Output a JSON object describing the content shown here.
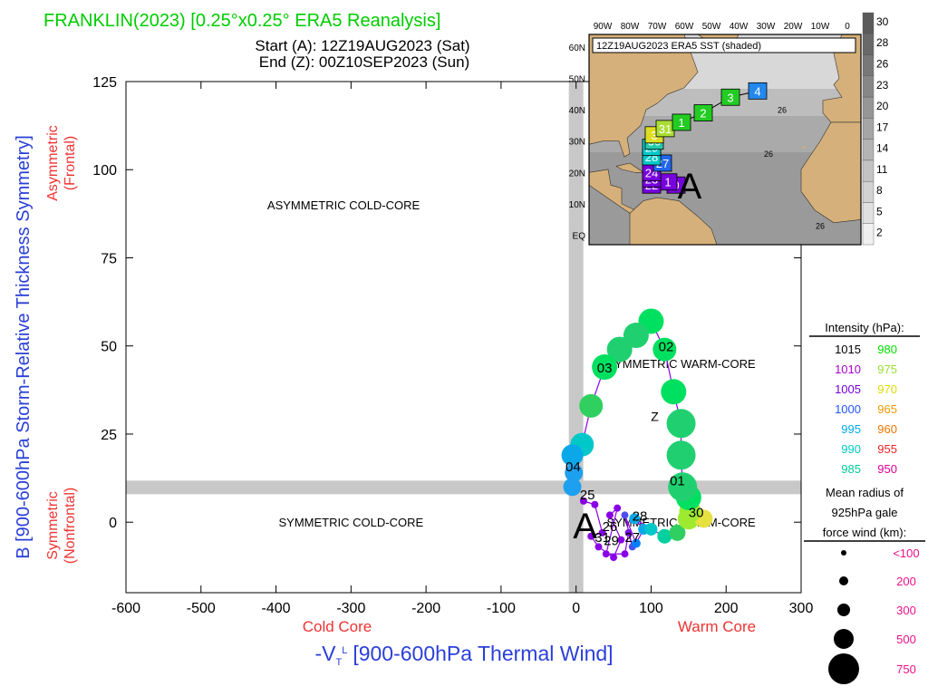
{
  "header": {
    "title": "FRANKLIN(2023) [0.25°x0.25° ERA5 Reanalysis]",
    "start": "Start (A): 12Z19AUG2023 (Sat)",
    "end": "End (Z): 00Z10SEP2023 (Sun)"
  },
  "colors": {
    "title": "#00cc00",
    "cold_label": "#ee3333",
    "warm_label": "#ee3333",
    "axis_label": "#2a3fd8",
    "asym_label": "#ee3333",
    "quadrant_bar": "#c8c8c8"
  },
  "chart_data": {
    "type": "scatter",
    "xlabel": "-V",
    "xlabel_sub": "T",
    "xlabel_sup": "L",
    "xlabel_rest": "[900-600hPa Thermal Wind]",
    "ylabel": "B [900-600hPa Storm-Relative Thickness Symmetry]",
    "xlim": [
      -600,
      300
    ],
    "ylim": [
      -20,
      125
    ],
    "x_ticks": [
      -600,
      -500,
      -400,
      -300,
      -200,
      -100,
      0,
      100,
      200,
      300
    ],
    "y_ticks": [
      0,
      25,
      50,
      75,
      100,
      125
    ],
    "threshold_x": 0,
    "threshold_y": 10,
    "side_labels": {
      "cold_core": "Cold Core",
      "warm_core": "Warm Core",
      "asym_line1": "Asymmetric",
      "asym_line2": "(Frontal)",
      "sym_line1": "Symmetric",
      "sym_line2": "(Nonfrontal)"
    },
    "quadrants": [
      {
        "text": "ASYMMETRIC COLD-CORE",
        "x": -310,
        "y": 90
      },
      {
        "text": "SYMMETRIC WARM-CORE",
        "x": 140,
        "y": 45
      },
      {
        "text": "SYMMETRIC COLD-CORE",
        "x": -300,
        "y": 0
      },
      {
        "text": "SYMMETRIC WARM-CORE",
        "x": 140,
        "y": 0
      }
    ],
    "start_marker": {
      "text": "A",
      "x": 12,
      "y": -1
    },
    "end_marker": {
      "text": "Z",
      "x": 105,
      "y": 30
    },
    "track": [
      {
        "x": 10,
        "y": 6,
        "r": 4,
        "c": "#8a00e6"
      },
      {
        "x": 25,
        "y": 5,
        "r": 4,
        "c": "#8a00e6"
      },
      {
        "x": 35,
        "y": -3,
        "r": 4,
        "c": "#8a00e6"
      },
      {
        "x": 20,
        "y": -4,
        "r": 4,
        "c": "#8a00e6"
      },
      {
        "x": 30,
        "y": -7,
        "r": 4,
        "c": "#8a00e6"
      },
      {
        "x": 50,
        "y": -10,
        "r": 4,
        "c": "#8a00e6"
      },
      {
        "x": 60,
        "y": -5,
        "r": 4,
        "c": "#8a00e6"
      },
      {
        "x": 45,
        "y": 2,
        "r": 4,
        "c": "#8a00e6"
      },
      {
        "x": 55,
        "y": 4,
        "r": 4,
        "c": "#8a00e6"
      },
      {
        "x": 40,
        "y": -9,
        "r": 4,
        "c": "#8a00e6"
      },
      {
        "x": 65,
        "y": -9,
        "r": 4,
        "c": "#8a00e6"
      },
      {
        "x": 70,
        "y": -3,
        "r": 4,
        "c": "#7a10e0"
      },
      {
        "x": 75,
        "y": -7,
        "r": 4,
        "c": "#4d4df0"
      },
      {
        "x": 65,
        "y": 2,
        "r": 4,
        "c": "#4d4df0"
      },
      {
        "x": 80,
        "y": -6,
        "r": 5,
        "c": "#0080ff"
      },
      {
        "x": 90,
        "y": -2,
        "r": 6,
        "c": "#0aa8e8"
      },
      {
        "x": 78,
        "y": 1,
        "r": 6,
        "c": "#0aa8e8"
      },
      {
        "x": 100,
        "y": -2,
        "r": 7,
        "c": "#00c8c8"
      },
      {
        "x": 118,
        "y": -4,
        "r": 8,
        "c": "#00d0a0"
      },
      {
        "x": 135,
        "y": -3,
        "r": 9,
        "c": "#30d060"
      },
      {
        "x": 150,
        "y": 1,
        "r": 12,
        "c": "#9eea30"
      },
      {
        "x": 170,
        "y": 1,
        "r": 10,
        "c": "#e6e040"
      },
      {
        "x": 152,
        "y": 3,
        "r": 12,
        "c": "#9eea30"
      },
      {
        "x": 150,
        "y": 7,
        "r": 14,
        "c": "#00e060"
      },
      {
        "x": 142,
        "y": 10,
        "r": 16,
        "c": "#20d070"
      },
      {
        "x": 140,
        "y": 19,
        "r": 16,
        "c": "#20d070"
      },
      {
        "x": 140,
        "y": 28,
        "r": 16,
        "c": "#20d070"
      },
      {
        "x": 130,
        "y": 37,
        "r": 14,
        "c": "#00e060"
      },
      {
        "x": 118,
        "y": 49,
        "r": 13,
        "c": "#00e060"
      },
      {
        "x": 100,
        "y": 57,
        "r": 14,
        "c": "#00e060"
      },
      {
        "x": 80,
        "y": 53,
        "r": 14,
        "c": "#20d070"
      },
      {
        "x": 58,
        "y": 49,
        "r": 14,
        "c": "#20d070"
      },
      {
        "x": 38,
        "y": 44,
        "r": 14,
        "c": "#00e060"
      },
      {
        "x": 20,
        "y": 33,
        "r": 13,
        "c": "#30d060"
      },
      {
        "x": 8,
        "y": 22,
        "r": 13,
        "c": "#00c8c8"
      },
      {
        "x": -5,
        "y": 19,
        "r": 12,
        "c": "#0aa8e8"
      },
      {
        "x": -3,
        "y": 14,
        "r": 10,
        "c": "#1ea0f0"
      },
      {
        "x": -5,
        "y": 10,
        "r": 10,
        "c": "#1ea0f0"
      }
    ],
    "track_labels": [
      {
        "text": "25",
        "x": 15,
        "y": 8
      },
      {
        "text": "26",
        "x": 45,
        "y": -1
      },
      {
        "text": "27",
        "x": 75,
        "y": -4
      },
      {
        "text": "28",
        "x": 85,
        "y": 2
      },
      {
        "text": "29",
        "x": 47,
        "y": -5
      },
      {
        "text": "30",
        "x": 160,
        "y": 3
      },
      {
        "text": "31",
        "x": 35,
        "y": -4
      },
      {
        "text": "01",
        "x": 135,
        "y": 12
      },
      {
        "text": "02",
        "x": 120,
        "y": 50
      },
      {
        "text": "03",
        "x": 38,
        "y": 44
      },
      {
        "text": "04",
        "x": -4,
        "y": 16
      }
    ],
    "legend": {
      "intensity_title": "Intensity (hPa):",
      "intensity": [
        {
          "p": "1015",
          "c": "#000000",
          "p2": "980",
          "c2": "#00dd00"
        },
        {
          "p": "1010",
          "c": "#aa00cc",
          "p2": "975",
          "c2": "#99dd33"
        },
        {
          "p": "1005",
          "c": "#7700dd",
          "p2": "970",
          "c2": "#dddd00"
        },
        {
          "p": "1000",
          "c": "#2255ff",
          "p2": "965",
          "c2": "#ee9900"
        },
        {
          "p": "995",
          "c": "#00aaee",
          "p2": "960",
          "c2": "#ee7700"
        },
        {
          "p": "990",
          "c": "#00c8c8",
          "p2": "955",
          "c2": "#ee2222"
        },
        {
          "p": "985",
          "c": "#00cc99",
          "p2": "950",
          "c2": "#dd0099"
        }
      ],
      "radius_title_1": "Mean radius of",
      "radius_title_2": "925hPa gale",
      "radius_title_3": "force wind (km):",
      "radius_color": "#ee1188",
      "radii": [
        {
          "label": "<100",
          "r": 3
        },
        {
          "label": "200",
          "r": 5
        },
        {
          "label": "300",
          "r": 7
        },
        {
          "label": "500",
          "r": 11
        },
        {
          "label": "750",
          "r": 17
        }
      ]
    },
    "inset": {
      "title": "12Z19AUG2023 ERA5 SST (shaded)",
      "lon_labels": [
        "90W",
        "80W",
        "70W",
        "60W",
        "50W",
        "40W",
        "30W",
        "20W",
        "10W",
        "0"
      ],
      "lat_labels": [
        "60N",
        "50N",
        "40N",
        "30N",
        "20N",
        "10N",
        "EQ"
      ],
      "colorbar": [
        "30",
        "28",
        "26",
        "23",
        "20",
        "17",
        "14",
        "11",
        "8",
        "5",
        "2"
      ],
      "contour_labels": [
        {
          "text": "26",
          "lon": -24,
          "lat": 39
        },
        {
          "text": "26",
          "lon": -29,
          "lat": 25
        },
        {
          "text": "26",
          "lon": -10,
          "lat": 2
        }
      ],
      "boxes": [
        {
          "text": "4",
          "lon": -33,
          "lat": 46,
          "c": "#2288ee"
        },
        {
          "text": "3",
          "lon": -43,
          "lat": 44,
          "c": "#22cc22"
        },
        {
          "text": "2",
          "lon": -53,
          "lat": 39,
          "c": "#22cc22"
        },
        {
          "text": "1",
          "lon": -61,
          "lat": 36,
          "c": "#22cc22"
        },
        {
          "text": "31",
          "lon": -67,
          "lat": 34,
          "c": "#aadd33"
        },
        {
          "text": "3",
          "lon": -71,
          "lat": 32,
          "c": "#dddd22"
        },
        {
          "text": "30",
          "lon": -71,
          "lat": 30,
          "c": "#22ccaa"
        },
        {
          "text": "29",
          "lon": -72,
          "lat": 28,
          "c": "#00c8c8"
        },
        {
          "text": "28",
          "lon": -72,
          "lat": 25,
          "c": "#00c8c8"
        },
        {
          "text": "27",
          "lon": -68,
          "lat": 23,
          "c": "#2266ee"
        },
        {
          "text": "24",
          "lon": -72,
          "lat": 20,
          "c": "#7700dd"
        },
        {
          "text": "23",
          "lon": -72,
          "lat": 18,
          "c": "#7700dd"
        },
        {
          "text": "22",
          "lon": -72,
          "lat": 16,
          "c": "#7700dd"
        },
        {
          "text": "1",
          "lon": -66,
          "lat": 17,
          "c": "#7700dd"
        },
        {
          "text": "0",
          "lon": -63,
          "lat": 16,
          "c": "#7700dd"
        }
      ],
      "start_marker": {
        "text": "A",
        "lon": -58,
        "lat": 14
      }
    }
  }
}
